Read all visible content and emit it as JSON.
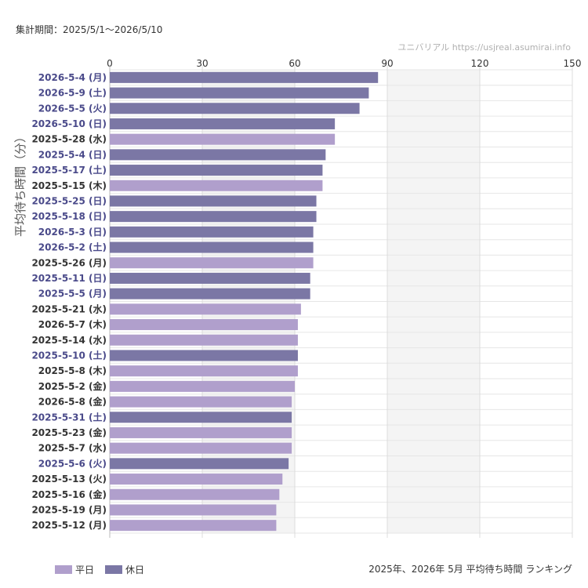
{
  "header": {
    "period": "集計期間：2025/5/1〜2026/5/10",
    "source": "ユニバリアル  https://usjreal.asumirai.info"
  },
  "footer": {
    "caption": "2025年、2026年 5月 平均待ち時間 ランキング"
  },
  "legend": {
    "items": [
      {
        "label": "平日",
        "color": "#b09fcc"
      },
      {
        "label": "休日",
        "color": "#7b77a5"
      }
    ]
  },
  "colors": {
    "weekday": "#b09fcc",
    "holiday": "#7b77a5",
    "weekday_label": "#333333",
    "holiday_label": "#4a4a8a"
  },
  "chart_data": {
    "type": "bar",
    "orientation": "horizontal",
    "title": "",
    "xlabel": "",
    "ylabel": "平均待ち時間（分）",
    "xlim": [
      0,
      150
    ],
    "xticks": [
      0,
      30,
      60,
      90,
      120,
      150
    ],
    "grid": true,
    "legend_position": "bottom-left",
    "categories": [
      "2026-5-4 (月)",
      "2026-5-9 (土)",
      "2026-5-5 (火)",
      "2026-5-10 (日)",
      "2025-5-28 (水)",
      "2025-5-4 (日)",
      "2025-5-17 (土)",
      "2025-5-15 (木)",
      "2025-5-25 (日)",
      "2025-5-18 (日)",
      "2026-5-3 (日)",
      "2026-5-2 (土)",
      "2025-5-26 (月)",
      "2025-5-11 (日)",
      "2025-5-5 (月)",
      "2025-5-21 (水)",
      "2026-5-7 (木)",
      "2025-5-14 (水)",
      "2025-5-10 (土)",
      "2025-5-8 (木)",
      "2025-5-2 (金)",
      "2026-5-8 (金)",
      "2025-5-31 (土)",
      "2025-5-23 (金)",
      "2025-5-7 (水)",
      "2025-5-6 (火)",
      "2025-5-13 (火)",
      "2025-5-16 (金)",
      "2025-5-19 (月)",
      "2025-5-12 (月)"
    ],
    "values": [
      87,
      84,
      81,
      73,
      73,
      70,
      69,
      69,
      67,
      67,
      66,
      66,
      66,
      65,
      65,
      62,
      61,
      61,
      61,
      61,
      60,
      59,
      59,
      59,
      59,
      58,
      56,
      55,
      54,
      54
    ],
    "day_type": [
      "休日",
      "休日",
      "休日",
      "休日",
      "平日",
      "休日",
      "休日",
      "平日",
      "休日",
      "休日",
      "休日",
      "休日",
      "平日",
      "休日",
      "休日",
      "平日",
      "平日",
      "平日",
      "休日",
      "平日",
      "平日",
      "平日",
      "休日",
      "平日",
      "平日",
      "休日",
      "平日",
      "平日",
      "平日",
      "平日"
    ]
  }
}
